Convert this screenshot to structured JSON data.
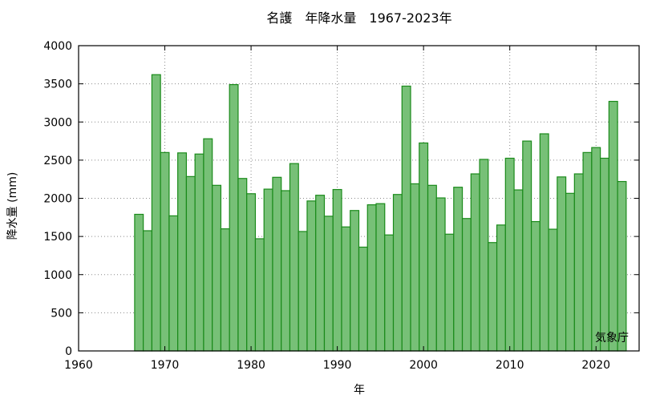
{
  "chart_data": {
    "type": "bar",
    "title": "名護　年降水量　1967-2023年",
    "xlabel": "年",
    "ylabel": "降水量 (mm)",
    "source": "気象庁",
    "xlim": [
      1960,
      2025
    ],
    "ylim": [
      0,
      4000
    ],
    "xticks": [
      "1960",
      "1970",
      "1980",
      "1990",
      "2000",
      "2010",
      "2020"
    ],
    "yticks": [
      "0",
      "500",
      "1000",
      "1500",
      "2000",
      "2500",
      "3000",
      "3500",
      "4000"
    ],
    "grid": true,
    "x": [
      1967,
      1968,
      1969,
      1970,
      1971,
      1972,
      1973,
      1974,
      1975,
      1976,
      1977,
      1978,
      1979,
      1980,
      1981,
      1982,
      1983,
      1984,
      1985,
      1986,
      1987,
      1988,
      1989,
      1990,
      1991,
      1992,
      1993,
      1994,
      1995,
      1996,
      1997,
      1998,
      1999,
      2000,
      2001,
      2002,
      2003,
      2004,
      2005,
      2006,
      2007,
      2008,
      2009,
      2010,
      2011,
      2012,
      2013,
      2014,
      2015,
      2016,
      2017,
      2018,
      2019,
      2020,
      2021,
      2022,
      2023
    ],
    "values": [
      1790,
      1575,
      3620,
      2600,
      1770,
      2595,
      2285,
      2580,
      2780,
      2170,
      1600,
      3490,
      2260,
      2060,
      1470,
      2120,
      2275,
      2100,
      2455,
      1565,
      1965,
      2040,
      1765,
      2115,
      1625,
      1840,
      1360,
      1915,
      1930,
      1520,
      2050,
      3470,
      2190,
      2725,
      2170,
      2005,
      1530,
      2145,
      1735,
      2320,
      2510,
      1420,
      1650,
      2525,
      2110,
      2750,
      1695,
      2845,
      1595,
      2280,
      2065,
      2320,
      2600,
      2665,
      2525,
      3270,
      2220
    ]
  }
}
